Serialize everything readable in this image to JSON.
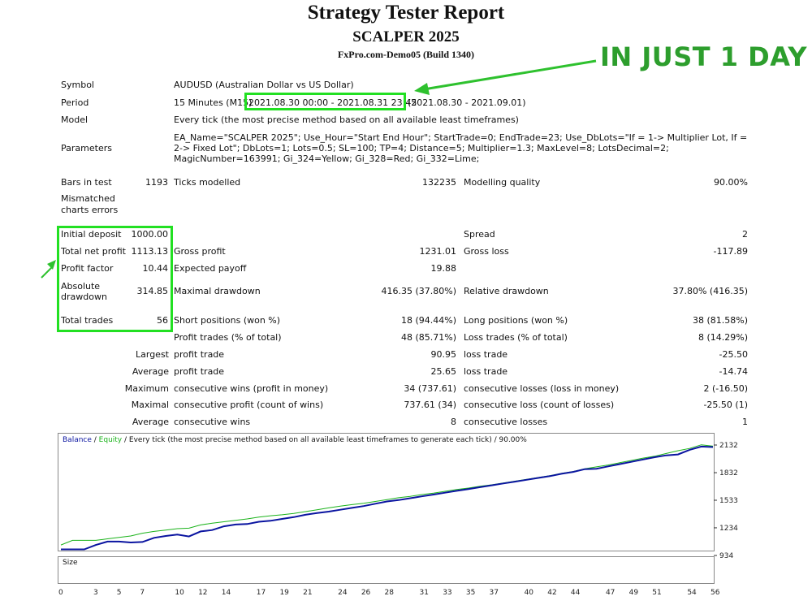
{
  "header": {
    "title": "Strategy Tester Report",
    "ea_name": "SCALPER 2025",
    "server": "FxPro.com-Demo05 (Build 1340)",
    "banner": "IN JUST 1 DAY"
  },
  "info": {
    "symbol_label": "Symbol",
    "symbol_value": "AUDUSD (Australian Dollar vs US Dollar)",
    "period_label": "Period",
    "period_prefix": "15 Minutes (M15)",
    "period_range": "2021.08.30 00:00 - 2021.08.31 23:45",
    "period_suffix": "(2021.08.30 - 2021.09.01)",
    "model_label": "Model",
    "model_value": "Every tick (the most precise method based on all available least timeframes)",
    "parameters_label": "Parameters",
    "parameters_value": "EA_Name=\"SCALPER 2025\"; Use_Hour=\"Start End Hour\"; StartTrade=0; EndTrade=23; Use_DbLots=\"If = 1-> Multiplier Lot, If = 2-> Fixed Lot\"; DbLots=1; Lots=0.5; SL=100; TP=4; Distance=5; Multiplier=1.3; MaxLevel=8; LotsDecimal=2; MagicNumber=163991; Gi_324=Yellow; Gi_328=Red; Gi_332=Lime;",
    "bars_label": "Bars in test",
    "bars_value": "1193",
    "ticks_label": "Ticks modelled",
    "ticks_value": "132235",
    "quality_label": "Modelling quality",
    "quality_value": "90.00%",
    "mismatched_label_1": "Mismatched",
    "mismatched_label_2": "charts errors"
  },
  "stats": {
    "initial_deposit_label": "Initial deposit",
    "initial_deposit": "1000.00",
    "spread_label": "Spread",
    "spread": "2",
    "total_net_profit_label": "Total net profit",
    "total_net_profit": "1113.13",
    "gross_profit_label": "Gross profit",
    "gross_profit": "1231.01",
    "gross_loss_label": "Gross loss",
    "gross_loss": "-117.89",
    "profit_factor_label": "Profit factor",
    "profit_factor": "10.44",
    "expected_payoff_label": "Expected payoff",
    "expected_payoff": "19.88",
    "absolute_dd_label_1": "Absolute",
    "absolute_dd_label_2": "drawdown",
    "absolute_dd": "314.85",
    "maximal_dd_label": "Maximal drawdown",
    "maximal_dd": "416.35 (37.80%)",
    "relative_dd_label": "Relative drawdown",
    "relative_dd": "37.80% (416.35)",
    "total_trades_label": "Total trades",
    "total_trades": "56",
    "short_label": "Short positions (won %)",
    "short_value": "18 (94.44%)",
    "long_label": "Long positions (won %)",
    "long_value": "38 (81.58%)",
    "profit_trades_label": "Profit trades (% of total)",
    "profit_trades": "48 (85.71%)",
    "loss_trades_label": "Loss trades (% of total)",
    "loss_trades": "8 (14.29%)",
    "largest_label": "Largest",
    "largest_profit_label": "profit trade",
    "largest_profit": "90.95",
    "largest_loss_label": "loss trade",
    "largest_loss": "-25.50",
    "average_label": "Average",
    "average_profit_label": "profit trade",
    "average_profit": "25.65",
    "average_loss_label": "loss trade",
    "average_loss": "-14.74",
    "maximum_label": "Maximum",
    "max_wins_label": "consecutive wins (profit in money)",
    "max_wins": "34 (737.61)",
    "max_losses_label": "consecutive losses (loss in money)",
    "max_losses": "2 (-16.50)",
    "maximal_label": "Maximal",
    "maximal_profit_label": "consecutive profit (count of wins)",
    "maximal_profit": "737.61 (34)",
    "maximal_loss_label": "consecutive loss (count of losses)",
    "maximal_loss": "-25.50 (1)",
    "avg_label": "Average",
    "avg_wins_label": "consecutive wins",
    "avg_wins": "8",
    "avg_losses_label": "consecutive losses",
    "avg_losses": "1"
  },
  "chart_data": {
    "type": "line",
    "legend_balance": "Balance",
    "legend_sep": " / ",
    "legend_equity": "Equity",
    "legend_rest": " / Every tick (the most precise method based on all available least timeframes to generate each tick) / 90.00%",
    "ylim": [
      934,
      2132
    ],
    "yticks": [
      "2132",
      "1832",
      "1533",
      "1234",
      "934"
    ],
    "ytick_values": [
      2132,
      1832,
      1533,
      1234,
      934
    ],
    "xlim": [
      0,
      56
    ],
    "xticks": [
      "0",
      "3",
      "5",
      "7",
      "10",
      "12",
      "14",
      "17",
      "19",
      "21",
      "24",
      "26",
      "28",
      "31",
      "33",
      "35",
      "37",
      "40",
      "42",
      "44",
      "47",
      "49",
      "51",
      "54",
      "56"
    ],
    "xtick_values": [
      0,
      3,
      5,
      7,
      10,
      12,
      14,
      17,
      19,
      21,
      24,
      26,
      28,
      31,
      33,
      35,
      37,
      40,
      42,
      44,
      47,
      49,
      51,
      54,
      56
    ],
    "balance_color": "#0a14a0",
    "equity_color": "#1bb31b",
    "series": [
      {
        "name": "Balance",
        "x": [
          0,
          2,
          3,
          4,
          5,
          6,
          7,
          8,
          9,
          10,
          11,
          12,
          13,
          14,
          15,
          16,
          17,
          18,
          19,
          20,
          21,
          22,
          23,
          24,
          25,
          26,
          27,
          28,
          29,
          30,
          31,
          32,
          33,
          34,
          35,
          36,
          37,
          38,
          39,
          40,
          41,
          42,
          43,
          44,
          45,
          46,
          47,
          48,
          49,
          50,
          51,
          52,
          53,
          54,
          55,
          56
        ],
        "y": [
          1000,
          1000,
          1048,
          1085,
          1085,
          1075,
          1080,
          1125,
          1145,
          1160,
          1140,
          1195,
          1210,
          1250,
          1270,
          1275,
          1300,
          1310,
          1330,
          1350,
          1375,
          1395,
          1410,
          1430,
          1450,
          1470,
          1495,
          1520,
          1535,
          1555,
          1575,
          1595,
          1615,
          1635,
          1655,
          1675,
          1695,
          1715,
          1735,
          1755,
          1775,
          1795,
          1820,
          1840,
          1870,
          1875,
          1900,
          1925,
          1950,
          1975,
          2000,
          2020,
          2030,
          2080,
          2115,
          2110
        ]
      },
      {
        "name": "Equity",
        "x": [
          0,
          1,
          2,
          3,
          4,
          5,
          6,
          7,
          8,
          9,
          10,
          11,
          12,
          13,
          14,
          15,
          16,
          17,
          18,
          19,
          20,
          21,
          22,
          23,
          24,
          25,
          26,
          27,
          28,
          29,
          30,
          31,
          32,
          33,
          34,
          35,
          36,
          37,
          38,
          39,
          40,
          41,
          42,
          43,
          44,
          45,
          46,
          47,
          48,
          49,
          50,
          51,
          52,
          53,
          54,
          55,
          56
        ],
        "y": [
          1048,
          1098,
          1098,
          1098,
          1115,
          1130,
          1145,
          1175,
          1195,
          1210,
          1225,
          1230,
          1265,
          1285,
          1300,
          1315,
          1330,
          1350,
          1365,
          1375,
          1390,
          1410,
          1430,
          1450,
          1470,
          1485,
          1500,
          1520,
          1540,
          1560,
          1575,
          1595,
          1610,
          1630,
          1650,
          1665,
          1685,
          1700,
          1720,
          1740,
          1760,
          1780,
          1800,
          1825,
          1845,
          1875,
          1895,
          1915,
          1940,
          1965,
          1990,
          2010,
          2040,
          2070,
          2095,
          2135,
          2120
        ]
      }
    ],
    "size_label": "Size"
  }
}
